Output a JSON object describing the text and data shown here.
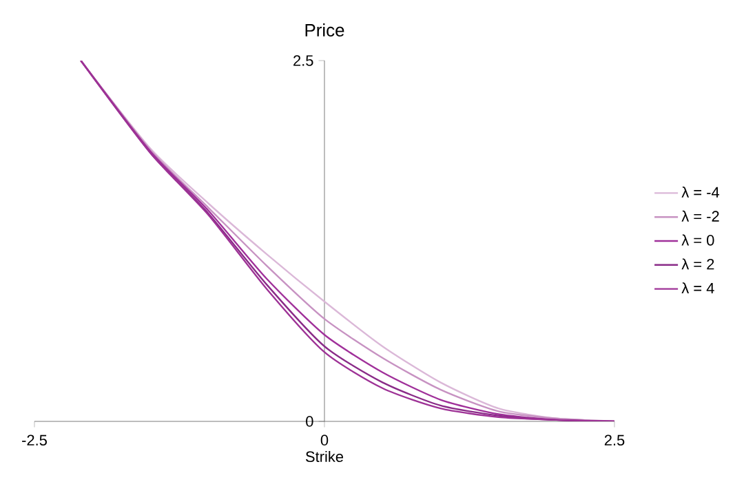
{
  "chart_data": {
    "type": "line",
    "title": "Price",
    "xlabel": "Strike",
    "x": [
      -2.1,
      -1.5,
      -1,
      -0.5,
      0,
      0.5,
      1,
      1.5,
      2,
      2.5
    ],
    "series": [
      {
        "name": "λ = -4",
        "color": "#dbb8d8",
        "values": [
          2.5,
          1.89,
          1.51,
          1.16,
          0.83,
          0.52,
          0.27,
          0.09,
          0.02,
          0
        ]
      },
      {
        "name": "λ = -2",
        "color": "#c792c2",
        "values": [
          2.5,
          1.88,
          1.48,
          1.08,
          0.71,
          0.44,
          0.22,
          0.07,
          0.02,
          0
        ]
      },
      {
        "name": "λ = 0",
        "color": "#a0309a",
        "values": [
          2.5,
          1.87,
          1.46,
          0.99,
          0.6,
          0.34,
          0.15,
          0.05,
          0.01,
          0
        ]
      },
      {
        "name": "λ = 2",
        "color": "#8a2b88",
        "values": [
          2.5,
          1.86,
          1.44,
          0.95,
          0.52,
          0.27,
          0.11,
          0.04,
          0.01,
          0
        ]
      },
      {
        "name": "λ = 4",
        "color": "#9e3296",
        "values": [
          2.5,
          1.86,
          1.43,
          0.92,
          0.48,
          0.23,
          0.09,
          0.03,
          0.01,
          0
        ]
      }
    ],
    "xlim": [
      -2.5,
      2.5
    ],
    "ylim": [
      0,
      2.5
    ],
    "xticks": [
      -2.5,
      0,
      2.5
    ],
    "yticks": [
      0,
      2.5
    ],
    "grid": false,
    "legend": "right",
    "marker": "none",
    "line_style": "solid"
  }
}
